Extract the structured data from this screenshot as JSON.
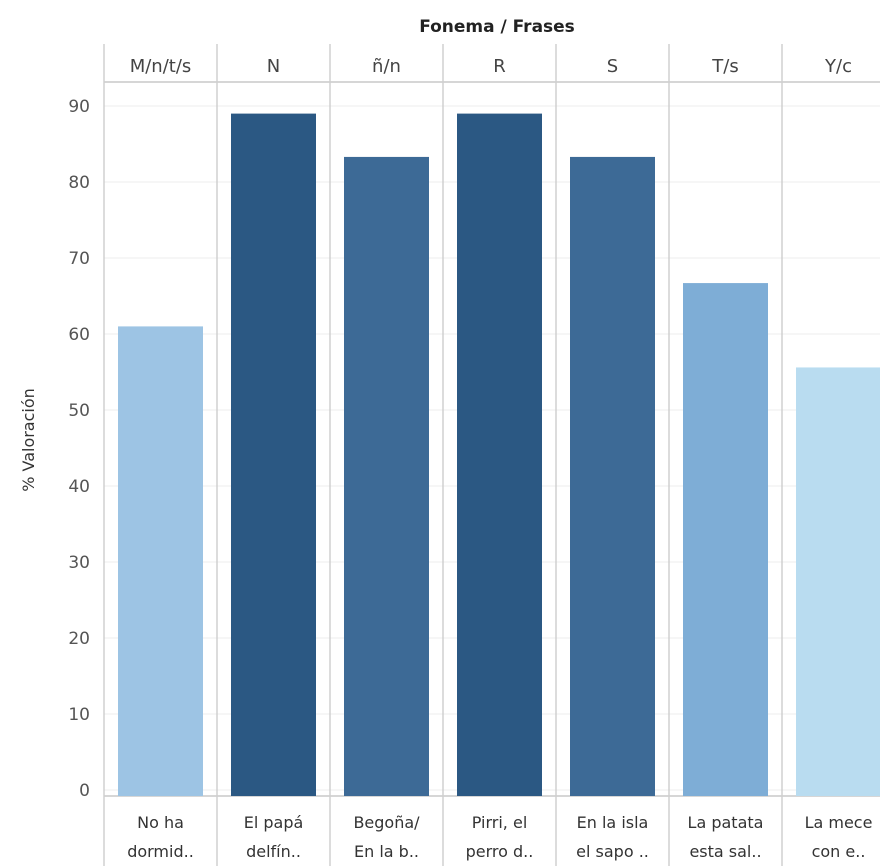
{
  "chart_data": {
    "type": "bar",
    "title": "Fonema / Frases",
    "ylabel": "% Valoración",
    "xlabel": "",
    "ylim": [
      0,
      90
    ],
    "yticks": [
      0,
      10,
      20,
      30,
      40,
      50,
      60,
      70,
      80,
      90
    ],
    "grid": true,
    "headers": [
      "M/n/t/s",
      "N",
      "ñ/n",
      "R",
      "S",
      "T/s",
      "Y/c"
    ],
    "categories": [
      [
        "No ha",
        "dormid.."
      ],
      [
        "El papá",
        "delfín.."
      ],
      [
        "Begoña/",
        "En la b.."
      ],
      [
        "Pirri, el",
        "perro d.."
      ],
      [
        "En la isla",
        "el sapo .."
      ],
      [
        "La patata",
        "esta sal.."
      ],
      [
        "La mece",
        "con e.."
      ]
    ],
    "values": [
      61,
      89,
      83.3,
      89,
      83.3,
      66.7,
      55.6
    ],
    "colors": [
      "#9dc4e4",
      "#2b5883",
      "#3d6a96",
      "#2b5883",
      "#3d6a96",
      "#7eadd6",
      "#b9dcf0"
    ]
  }
}
